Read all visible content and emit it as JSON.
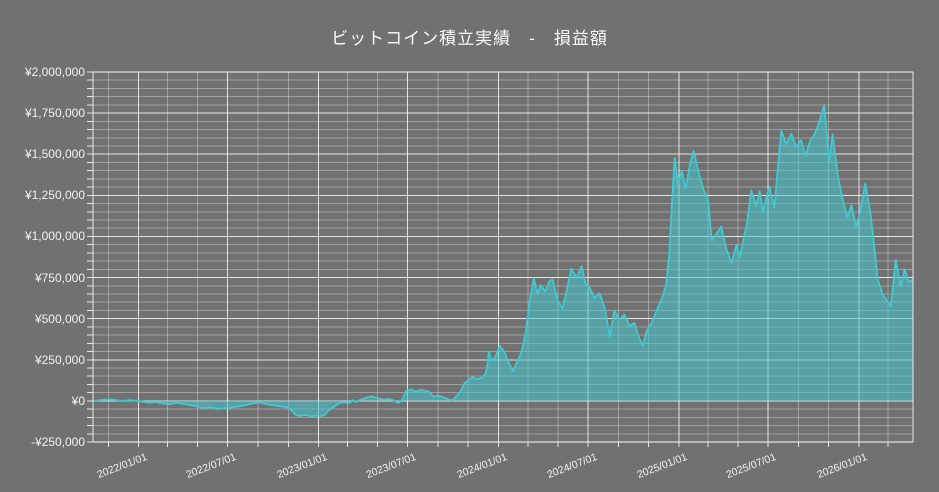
{
  "title": "ビットコイン積立実績　-　損益額",
  "colors": {
    "background": "#717171",
    "line": "#3fc9d1",
    "fill": "rgba(69,198,208,0.55)",
    "grid_minor": "rgba(255,255,255,0.33)",
    "grid_major": "rgba(255,255,255,0.82)",
    "text": "#f2f2f2"
  },
  "chart_data": {
    "type": "area",
    "title": "ビットコイン積立実績　-　損益額",
    "xlabel": "",
    "ylabel": "",
    "legend": "none",
    "grid": "on",
    "x_axis": {
      "min": "2021-10-01",
      "max": "2026-04-21",
      "ticks": [
        {
          "label": "2022/01/01",
          "date": "2022-01-01"
        },
        {
          "label": "2022/07/01",
          "date": "2022-07-01"
        },
        {
          "label": "2023/01/01",
          "date": "2023-01-01"
        },
        {
          "label": "2023/07/01",
          "date": "2023-07-01"
        },
        {
          "label": "2024/01/01",
          "date": "2024-01-01"
        },
        {
          "label": "2024/07/01",
          "date": "2024-07-01"
        },
        {
          "label": "2025/01/01",
          "date": "2025-01-01"
        },
        {
          "label": "2025/07/01",
          "date": "2025-07-01"
        },
        {
          "label": "2026/01/01",
          "date": "2026-01-01"
        }
      ]
    },
    "y_axis": {
      "min": -250000,
      "max": 2000000,
      "minor_step": 50000,
      "major_step": 250000,
      "currency": "JPY",
      "ticks": [
        {
          "label": "¥2,000,000",
          "value": 2000000
        },
        {
          "label": "¥1,750,000",
          "value": 1750000
        },
        {
          "label": "¥1,500,000",
          "value": 1500000
        },
        {
          "label": "¥1,250,000",
          "value": 1250000
        },
        {
          "label": "¥1,000,000",
          "value": 1000000
        },
        {
          "label": "¥750,000",
          "value": 750000
        },
        {
          "label": "¥500,000",
          "value": 500000
        },
        {
          "label": "¥250,000",
          "value": 250000
        },
        {
          "label": "¥0",
          "value": 0
        },
        {
          "label": "-¥250,000",
          "value": -250000
        }
      ]
    },
    "gridlines": {
      "vertical": {
        "start": "2021-11-01",
        "end": "2026-03-01",
        "step_months": 2,
        "major_months": [
          1,
          7
        ]
      },
      "horizontal": {
        "minor_step": 50000,
        "major_step": 250000
      }
    },
    "series": [
      {
        "name": "損益額",
        "baseline": 0,
        "points": [
          [
            "2021-10-01",
            0
          ],
          [
            "2021-10-12",
            3000
          ],
          [
            "2021-10-22",
            6000
          ],
          [
            "2021-11-05",
            9000
          ],
          [
            "2021-11-18",
            4000
          ],
          [
            "2021-12-01",
            -2000
          ],
          [
            "2021-12-14",
            4000
          ],
          [
            "2021-12-26",
            1000
          ],
          [
            "2022-01-08",
            -4000
          ],
          [
            "2022-01-22",
            -11000
          ],
          [
            "2022-02-05",
            -7000
          ],
          [
            "2022-02-19",
            -15000
          ],
          [
            "2022-03-05",
            -21000
          ],
          [
            "2022-03-19",
            -13000
          ],
          [
            "2022-04-02",
            -17000
          ],
          [
            "2022-04-16",
            -26000
          ],
          [
            "2022-04-30",
            -33000
          ],
          [
            "2022-05-14",
            -45000
          ],
          [
            "2022-05-28",
            -38000
          ],
          [
            "2022-06-11",
            -50000
          ],
          [
            "2022-06-25",
            -44000
          ],
          [
            "2022-07-09",
            -40000
          ],
          [
            "2022-07-23",
            -34000
          ],
          [
            "2022-08-06",
            -26000
          ],
          [
            "2022-08-20",
            -16000
          ],
          [
            "2022-09-03",
            -9000
          ],
          [
            "2022-09-13",
            -16000
          ],
          [
            "2022-09-24",
            -24000
          ],
          [
            "2022-10-08",
            -30000
          ],
          [
            "2022-10-22",
            -36000
          ],
          [
            "2022-11-01",
            -42000
          ],
          [
            "2022-11-09",
            -62000
          ],
          [
            "2022-11-16",
            -86000
          ],
          [
            "2022-11-26",
            -92000
          ],
          [
            "2022-12-06",
            -85000
          ],
          [
            "2022-12-16",
            -95000
          ],
          [
            "2022-12-26",
            -90000
          ],
          [
            "2023-01-05",
            -92000
          ],
          [
            "2023-01-14",
            -86000
          ],
          [
            "2023-01-21",
            -60000
          ],
          [
            "2023-02-01",
            -38000
          ],
          [
            "2023-02-12",
            -16000
          ],
          [
            "2023-02-22",
            -8000
          ],
          [
            "2023-03-05",
            -14000
          ],
          [
            "2023-03-12",
            4000
          ],
          [
            "2023-03-19",
            -6000
          ],
          [
            "2023-03-28",
            8000
          ],
          [
            "2023-04-10",
            22000
          ],
          [
            "2023-04-20",
            28000
          ],
          [
            "2023-05-01",
            16000
          ],
          [
            "2023-05-14",
            7000
          ],
          [
            "2023-05-26",
            12000
          ],
          [
            "2023-06-06",
            -4000
          ],
          [
            "2023-06-13",
            -13000
          ],
          [
            "2023-06-21",
            12000
          ],
          [
            "2023-06-28",
            62000
          ],
          [
            "2023-07-08",
            70000
          ],
          [
            "2023-07-18",
            58000
          ],
          [
            "2023-07-28",
            66000
          ],
          [
            "2023-08-08",
            60000
          ],
          [
            "2023-08-15",
            52000
          ],
          [
            "2023-08-22",
            26000
          ],
          [
            "2023-09-02",
            32000
          ],
          [
            "2023-09-12",
            22000
          ],
          [
            "2023-09-22",
            9000
          ],
          [
            "2023-09-30",
            3000
          ],
          [
            "2023-10-08",
            28000
          ],
          [
            "2023-10-16",
            55000
          ],
          [
            "2023-10-24",
            105000
          ],
          [
            "2023-11-02",
            128000
          ],
          [
            "2023-11-10",
            146000
          ],
          [
            "2023-11-19",
            130000
          ],
          [
            "2023-11-28",
            142000
          ],
          [
            "2023-12-06",
            165000
          ],
          [
            "2023-12-10",
            225000
          ],
          [
            "2023-12-13",
            300000
          ],
          [
            "2023-12-19",
            245000
          ],
          [
            "2023-12-27",
            275000
          ],
          [
            "2024-01-04",
            335000
          ],
          [
            "2024-01-12",
            305000
          ],
          [
            "2024-01-21",
            240000
          ],
          [
            "2024-01-31",
            180000
          ],
          [
            "2024-02-09",
            245000
          ],
          [
            "2024-02-17",
            295000
          ],
          [
            "2024-02-26",
            420000
          ],
          [
            "2024-03-04",
            590000
          ],
          [
            "2024-03-13",
            745000
          ],
          [
            "2024-03-20",
            650000
          ],
          [
            "2024-03-27",
            705000
          ],
          [
            "2024-04-05",
            665000
          ],
          [
            "2024-04-13",
            725000
          ],
          [
            "2024-04-20",
            740000
          ],
          [
            "2024-04-30",
            615000
          ],
          [
            "2024-05-10",
            560000
          ],
          [
            "2024-05-19",
            675000
          ],
          [
            "2024-05-28",
            805000
          ],
          [
            "2024-06-08",
            745000
          ],
          [
            "2024-06-18",
            820000
          ],
          [
            "2024-06-26",
            710000
          ],
          [
            "2024-07-04",
            690000
          ],
          [
            "2024-07-14",
            625000
          ],
          [
            "2024-07-24",
            655000
          ],
          [
            "2024-08-04",
            565000
          ],
          [
            "2024-08-14",
            390000
          ],
          [
            "2024-08-23",
            550000
          ],
          [
            "2024-09-03",
            495000
          ],
          [
            "2024-09-13",
            525000
          ],
          [
            "2024-09-23",
            455000
          ],
          [
            "2024-10-03",
            475000
          ],
          [
            "2024-10-13",
            380000
          ],
          [
            "2024-10-20",
            335000
          ],
          [
            "2024-10-28",
            425000
          ],
          [
            "2024-11-08",
            480000
          ],
          [
            "2024-11-18",
            555000
          ],
          [
            "2024-11-28",
            625000
          ],
          [
            "2024-12-06",
            700000
          ],
          [
            "2024-12-13",
            900000
          ],
          [
            "2024-12-19",
            1250000
          ],
          [
            "2024-12-24",
            1480000
          ],
          [
            "2024-12-30",
            1310000
          ],
          [
            "2025-01-07",
            1400000
          ],
          [
            "2025-01-15",
            1290000
          ],
          [
            "2025-01-24",
            1445000
          ],
          [
            "2025-01-31",
            1520000
          ],
          [
            "2025-02-09",
            1405000
          ],
          [
            "2025-02-20",
            1285000
          ],
          [
            "2025-03-01",
            1230000
          ],
          [
            "2025-03-09",
            975000
          ],
          [
            "2025-03-18",
            1015000
          ],
          [
            "2025-03-28",
            1060000
          ],
          [
            "2025-04-07",
            930000
          ],
          [
            "2025-04-18",
            840000
          ],
          [
            "2025-04-28",
            950000
          ],
          [
            "2025-05-05",
            875000
          ],
          [
            "2025-05-12",
            985000
          ],
          [
            "2025-05-19",
            1070000
          ],
          [
            "2025-05-28",
            1280000
          ],
          [
            "2025-06-07",
            1185000
          ],
          [
            "2025-06-14",
            1275000
          ],
          [
            "2025-06-21",
            1150000
          ],
          [
            "2025-06-28",
            1245000
          ],
          [
            "2025-07-04",
            1300000
          ],
          [
            "2025-07-14",
            1175000
          ],
          [
            "2025-07-21",
            1420000
          ],
          [
            "2025-07-28",
            1645000
          ],
          [
            "2025-08-07",
            1560000
          ],
          [
            "2025-08-17",
            1625000
          ],
          [
            "2025-08-27",
            1545000
          ],
          [
            "2025-09-06",
            1585000
          ],
          [
            "2025-09-15",
            1490000
          ],
          [
            "2025-09-24",
            1580000
          ],
          [
            "2025-10-04",
            1625000
          ],
          [
            "2025-10-14",
            1705000
          ],
          [
            "2025-10-23",
            1800000
          ],
          [
            "2025-11-02",
            1455000
          ],
          [
            "2025-11-09",
            1620000
          ],
          [
            "2025-11-19",
            1380000
          ],
          [
            "2025-11-27",
            1255000
          ],
          [
            "2025-12-09",
            1115000
          ],
          [
            "2025-12-17",
            1190000
          ],
          [
            "2025-12-27",
            1060000
          ],
          [
            "2026-01-04",
            1150000
          ],
          [
            "2026-01-14",
            1320000
          ],
          [
            "2026-01-24",
            1155000
          ],
          [
            "2026-02-01",
            955000
          ],
          [
            "2026-02-08",
            745000
          ],
          [
            "2026-02-19",
            645000
          ],
          [
            "2026-03-07",
            575000
          ],
          [
            "2026-03-17",
            860000
          ],
          [
            "2026-03-27",
            695000
          ],
          [
            "2026-04-04",
            800000
          ],
          [
            "2026-04-13",
            720000
          ],
          [
            "2026-04-21",
            740000
          ]
        ]
      }
    ]
  }
}
